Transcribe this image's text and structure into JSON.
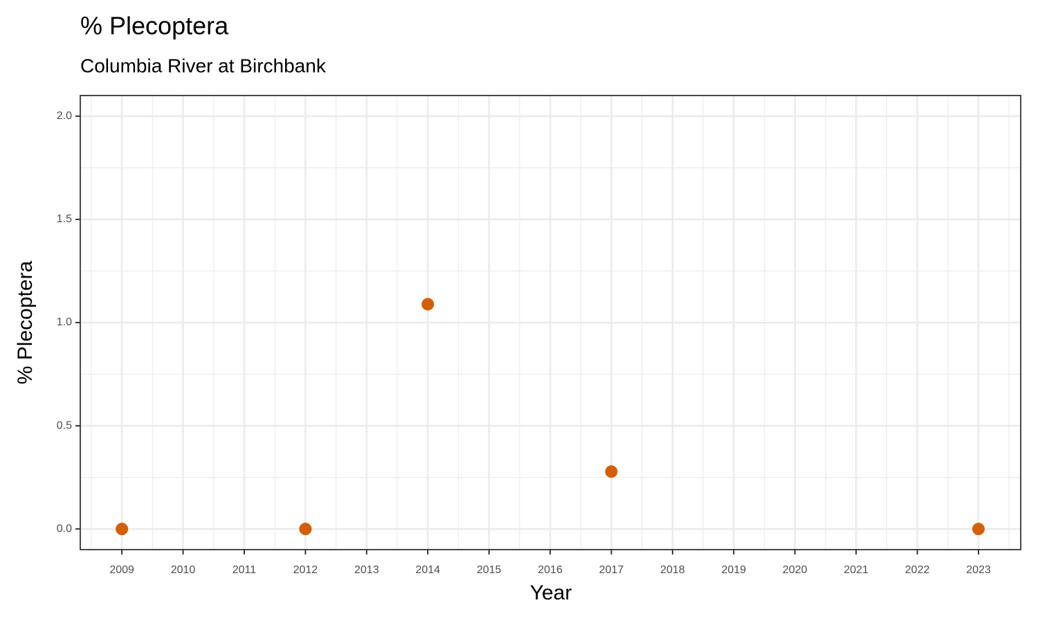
{
  "chart_data": {
    "type": "scatter",
    "title": "% Plecoptera",
    "subtitle": "Columbia River at Birchbank",
    "x_label": "Year",
    "y_label": "% Plecoptera",
    "x": [
      2009,
      2012,
      2014,
      2017,
      2023
    ],
    "values": [
      0,
      0,
      1.089,
      0.278,
      0
    ],
    "color": "#d55e00",
    "xlim": [
      2008.32,
      2023.69
    ],
    "xticks": [
      2009,
      2010,
      2011,
      2012,
      2013,
      2014,
      2015,
      2016,
      2017,
      2018,
      2019,
      2020,
      2021,
      2022,
      2023
    ],
    "ylim": [
      -0.1,
      2.1
    ],
    "yticks": [
      {
        "value": 0,
        "label": "0.0"
      },
      {
        "value": 0.5,
        "label": "0.5"
      },
      {
        "value": 1,
        "label": "1.0"
      },
      {
        "value": 1.5,
        "label": "1.5"
      },
      {
        "value": 2,
        "label": "2.0"
      }
    ],
    "grid": true,
    "minor_grid": true
  }
}
